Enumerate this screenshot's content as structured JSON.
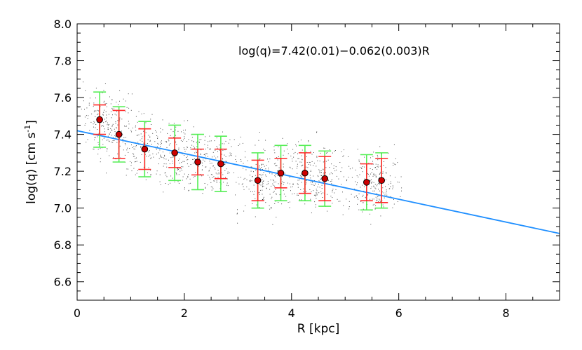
{
  "chart_data": {
    "type": "scatter",
    "title": "",
    "xlabel": "R [kpc]",
    "ylabel_main": "log(q) [cm s",
    "ylabel_sup": "-1",
    "ylabel_close": "]",
    "xlim": [
      0,
      9
    ],
    "ylim": [
      6.5,
      8.0
    ],
    "x_ticks": [
      0,
      2,
      4,
      6,
      8
    ],
    "x_tick_labels": [
      "0",
      "2",
      "4",
      "6",
      "8"
    ],
    "y_ticks": [
      6.6,
      6.8,
      7.0,
      7.2,
      7.4,
      7.6,
      7.8,
      8.0
    ],
    "y_tick_labels": [
      "6.6",
      "6.8",
      "7.0",
      "7.2",
      "7.4",
      "7.6",
      "7.8",
      "8.0"
    ],
    "grid": false,
    "annotation": "log(q)=7.42(0.01)−0.062(0.003)R",
    "fit_line": {
      "intercept": 7.42,
      "slope": -0.062,
      "color": "#1f8fff"
    },
    "binned_points": [
      {
        "x": 0.42,
        "y": 7.48,
        "err_red": 0.08,
        "err_green": 0.15
      },
      {
        "x": 0.78,
        "y": 7.4,
        "err_red": 0.13,
        "err_green": 0.15
      },
      {
        "x": 1.26,
        "y": 7.32,
        "err_red": 0.11,
        "err_green": 0.15
      },
      {
        "x": 1.82,
        "y": 7.3,
        "err_red": 0.08,
        "err_green": 0.15
      },
      {
        "x": 2.25,
        "y": 7.25,
        "err_red": 0.07,
        "err_green": 0.15
      },
      {
        "x": 2.68,
        "y": 7.24,
        "err_red": 0.08,
        "err_green": 0.15
      },
      {
        "x": 3.37,
        "y": 7.15,
        "err_red": 0.11,
        "err_green": 0.15
      },
      {
        "x": 3.8,
        "y": 7.19,
        "err_red": 0.08,
        "err_green": 0.15
      },
      {
        "x": 4.25,
        "y": 7.19,
        "err_red": 0.11,
        "err_green": 0.15
      },
      {
        "x": 4.62,
        "y": 7.16,
        "err_red": 0.12,
        "err_green": 0.15
      },
      {
        "x": 5.4,
        "y": 7.14,
        "err_red": 0.1,
        "err_green": 0.15
      },
      {
        "x": 5.68,
        "y": 7.15,
        "err_red": 0.12,
        "err_green": 0.15
      }
    ],
    "scatter_cloud": {
      "description": "individual measurements scattered around binned points",
      "x_range": [
        0.3,
        6.0
      ],
      "color": "#000000"
    },
    "colors": {
      "point_fill": "#cc0000",
      "err_red": "#ff2a2a",
      "err_green": "#55ee55",
      "axis": "#000000"
    }
  }
}
